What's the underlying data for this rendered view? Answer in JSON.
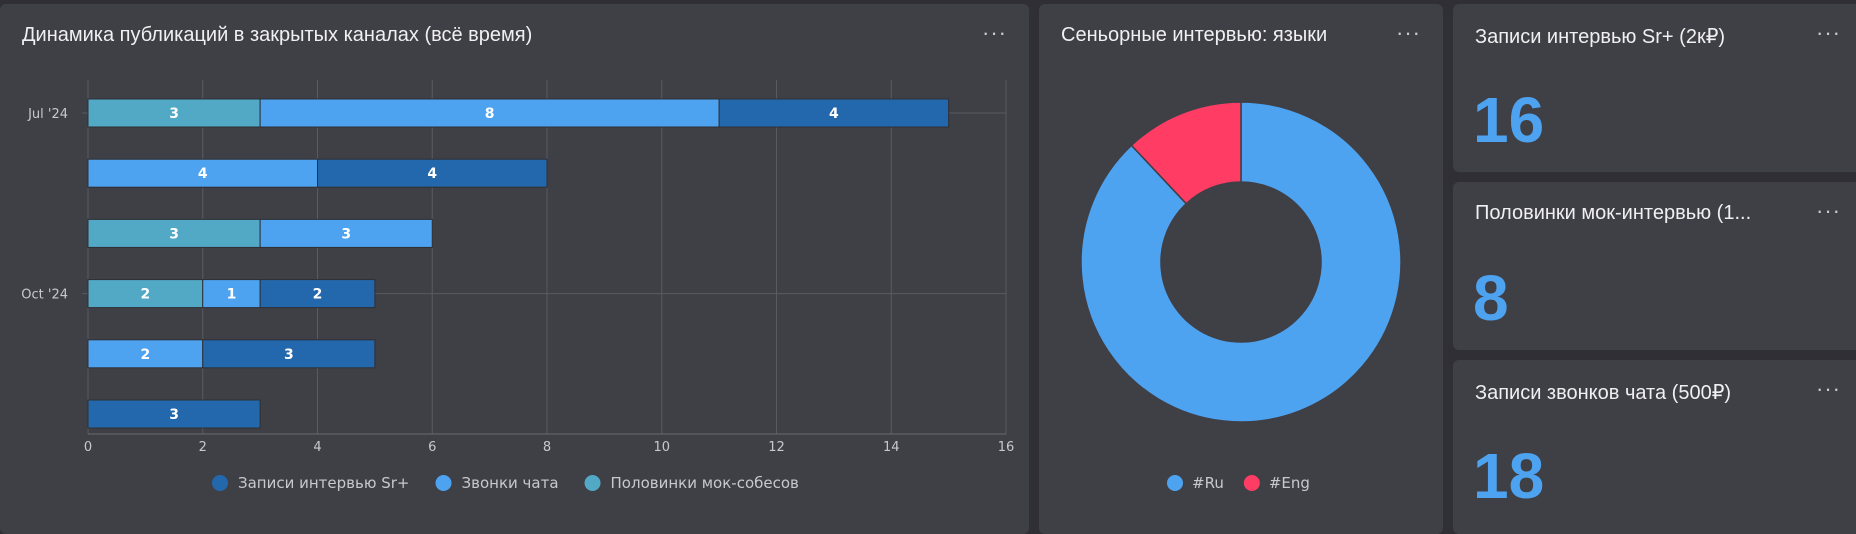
{
  "colors": {
    "interviews_sr": "#2368ad",
    "calls": "#4ea3f0",
    "mock_halves": "#52a9c6",
    "ru": "#4ea3f0",
    "eng": "#ff3d64",
    "panel": "#3f3f46",
    "background": "#2f2f35"
  },
  "panels": {
    "bar": {
      "title": "Динамика публикаций в закрытых каналах (всё время)",
      "menu": "···"
    },
    "donut": {
      "title": "Сеньорные интервью: языки",
      "menu": "···"
    },
    "kpi1": {
      "title": "Записи интервью Sr+ (2к₽)",
      "value": "16",
      "menu": "···"
    },
    "kpi2": {
      "title": "Половинки мок-интервью (1...",
      "value": "8",
      "menu": "···"
    },
    "kpi3": {
      "title": "Записи звонков чата (500₽)",
      "value": "18",
      "menu": "···"
    }
  },
  "chart_data": [
    {
      "type": "bar",
      "orientation": "horizontal",
      "stacked": true,
      "title": "Динамика публикаций в закрытых каналах (всё время)",
      "y_tick_labels": [
        "Jul '24",
        "",
        "",
        "Oct '24",
        "",
        ""
      ],
      "xlim": [
        0,
        16
      ],
      "x_ticks": [
        0,
        2,
        4,
        6,
        8,
        10,
        12,
        14,
        16
      ],
      "grid": true,
      "legend": "bottom",
      "series": [
        {
          "name": "Половинки мок-собесов",
          "color_key": "mock_halves",
          "values": [
            3,
            0,
            3,
            2,
            0,
            0
          ]
        },
        {
          "name": "Звонки чата",
          "color_key": "calls",
          "values": [
            8,
            4,
            3,
            1,
            2,
            0
          ]
        },
        {
          "name": "Записи интервью Sr+",
          "color_key": "interviews_sr",
          "values": [
            4,
            4,
            0,
            2,
            3,
            3
          ]
        }
      ],
      "legend_order": [
        "Записи интервью Sr+",
        "Звонки чата",
        "Половинки мок-собесов"
      ]
    },
    {
      "type": "pie",
      "donut": true,
      "title": "Сеньорные интервью: языки",
      "legend": "bottom",
      "slices": [
        {
          "label": "#Ru",
          "value": 88,
          "color_key": "ru"
        },
        {
          "label": "#Eng",
          "value": 12,
          "color_key": "eng"
        }
      ]
    }
  ]
}
